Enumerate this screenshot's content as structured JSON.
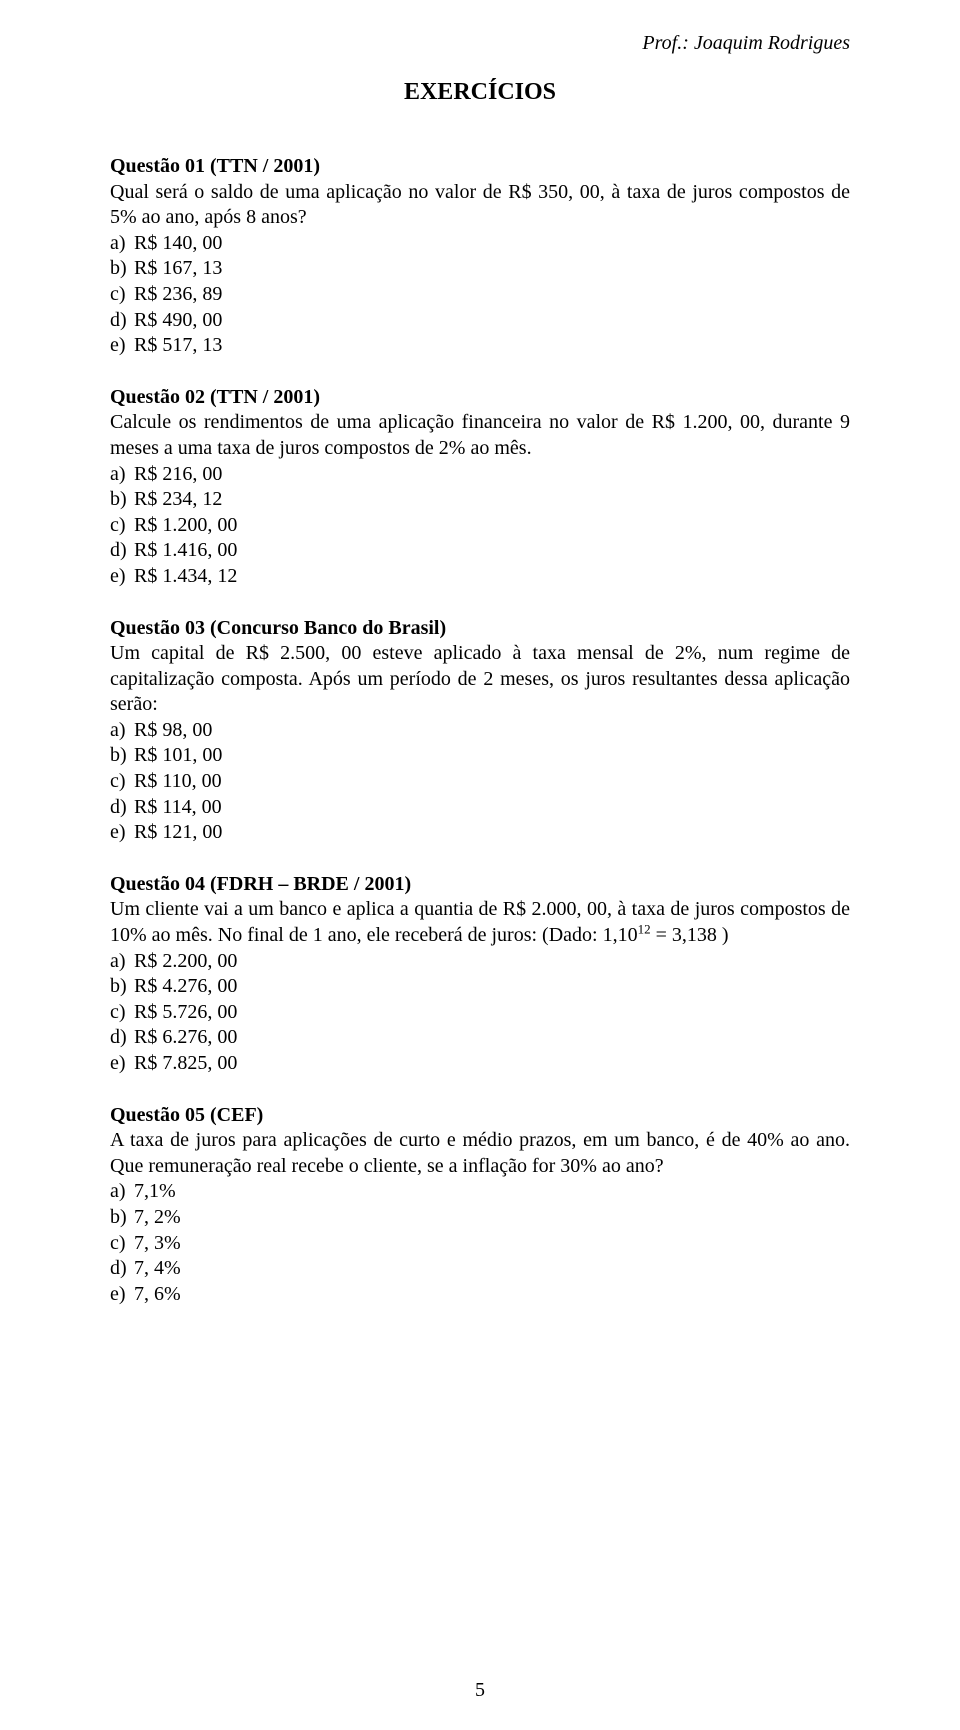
{
  "header": {
    "professor_line": "Prof.: Joaquim Rodrigues"
  },
  "title": "EXERCÍCIOS",
  "page_number": "5",
  "questions": [
    {
      "title": "Questão 01 (TTN / 2001)",
      "body": "Qual será o saldo de uma aplicação no valor de R$ 350, 00, à taxa de juros compostos de 5% ao ano, após 8 anos?",
      "options": [
        "R$ 140, 00",
        "R$ 167, 13",
        "R$ 236, 89",
        "R$ 490, 00",
        "R$ 517, 13"
      ]
    },
    {
      "title": "Questão 02 (TTN / 2001)",
      "body": "Calcule os rendimentos de uma aplicação financeira no valor de R$ 1.200, 00, durante 9 meses a uma taxa de juros compostos de 2% ao mês.",
      "options": [
        "R$ 216, 00",
        "R$ 234, 12",
        "R$ 1.200, 00",
        "R$ 1.416, 00",
        "R$ 1.434, 12"
      ]
    },
    {
      "title": "Questão 03 (Concurso Banco do Brasil)",
      "body": "Um capital de R$ 2.500, 00 esteve aplicado à taxa mensal de 2%, num regime de capitalização composta. Após um período de 2 meses, os juros resultantes dessa aplicação serão:",
      "options": [
        "R$ 98, 00",
        "R$ 101, 00",
        "R$ 110, 00",
        "R$ 114, 00",
        "R$ 121, 00"
      ]
    },
    {
      "title": "Questão 04 (FDRH – BRDE / 2001)",
      "body_pre": "Um cliente vai a um banco e aplica a quantia de R$ 2.000, 00, à taxa de juros compostos de 10% ao mês. No final de 1 ano, ele receberá de juros: (Dado: ",
      "math": {
        "base": "1,10",
        "exp": "12",
        "rhs": "3,138"
      },
      "body_post": " )",
      "options": [
        "R$ 2.200, 00",
        "R$ 4.276, 00",
        "R$ 5.726, 00",
        "R$ 6.276, 00",
        "R$ 7.825, 00"
      ]
    },
    {
      "title": "Questão 05 (CEF)",
      "body": "A taxa de juros para aplicações de curto e médio prazos, em um banco, é de 40% ao ano. Que remuneração real recebe o cliente, se a inflação for 30% ao ano?",
      "options": [
        "7,1%",
        "7, 2%",
        "7, 3%",
        "7, 4%",
        "7, 6%"
      ]
    }
  ]
}
